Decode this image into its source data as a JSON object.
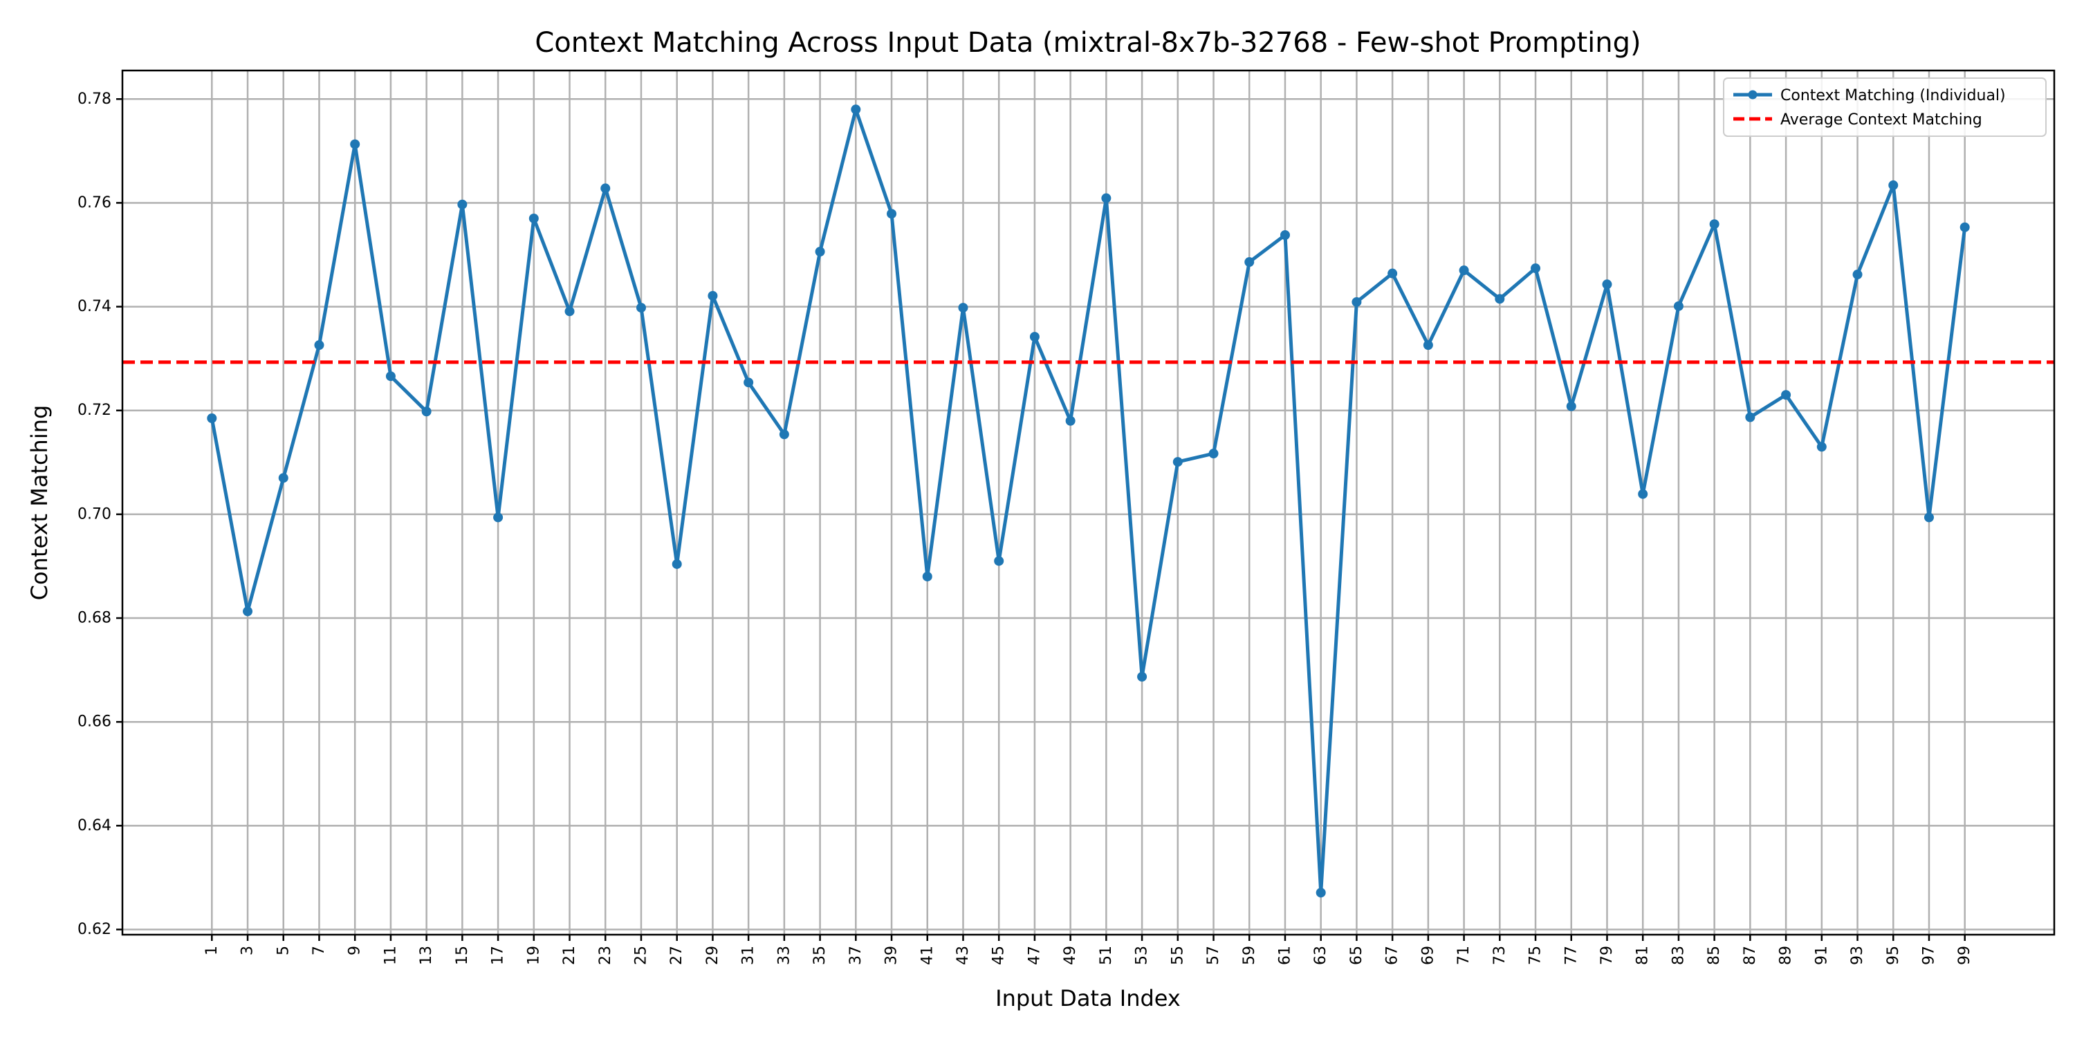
{
  "chart_data": {
    "type": "line",
    "title": "Context Matching Across Input Data (mixtral-8x7b-32768 - Few-shot Prompting)",
    "xlabel": "Input Data Index",
    "ylabel": "Context Matching",
    "xlim": [
      -4,
      104
    ],
    "ylim": [
      0.619,
      0.7855
    ],
    "x_ticks": [
      1,
      3,
      5,
      7,
      9,
      11,
      13,
      15,
      17,
      19,
      21,
      23,
      25,
      27,
      29,
      31,
      33,
      35,
      37,
      39,
      41,
      43,
      45,
      47,
      49,
      51,
      53,
      55,
      57,
      59,
      61,
      63,
      65,
      67,
      69,
      71,
      73,
      75,
      77,
      79,
      81,
      83,
      85,
      87,
      89,
      91,
      93,
      95,
      97,
      99
    ],
    "y_ticks": [
      0.62,
      0.64,
      0.66,
      0.68,
      0.7,
      0.72,
      0.74,
      0.76,
      0.78
    ],
    "y_tick_labels": [
      "0.62",
      "0.64",
      "0.66",
      "0.68",
      "0.70",
      "0.72",
      "0.74",
      "0.76",
      "0.78"
    ],
    "grid": true,
    "legend_position": "top-right",
    "series": [
      {
        "name": "Context Matching (Individual)",
        "color": "#1f77b4",
        "style": "line-with-markers",
        "x": [
          1,
          3,
          5,
          7,
          9,
          11,
          13,
          15,
          17,
          19,
          21,
          23,
          25,
          27,
          29,
          31,
          33,
          35,
          37,
          39,
          41,
          43,
          45,
          47,
          49,
          51,
          53,
          55,
          57,
          59,
          61,
          63,
          65,
          67,
          69,
          71,
          73,
          75,
          77,
          79,
          81,
          83,
          85,
          87,
          89,
          91,
          93,
          95,
          97,
          99
        ],
        "y": [
          0.7185,
          0.6813,
          0.707,
          0.7326,
          0.7713,
          0.7266,
          0.7198,
          0.7597,
          0.6994,
          0.757,
          0.7391,
          0.7628,
          0.7398,
          0.6904,
          0.7421,
          0.7254,
          0.7154,
          0.7506,
          0.778,
          0.7579,
          0.688,
          0.7398,
          0.691,
          0.7342,
          0.718,
          0.7609,
          0.6687,
          0.7101,
          0.7117,
          0.7486,
          0.7538,
          0.6271,
          0.7409,
          0.7464,
          0.7326,
          0.747,
          0.7415,
          0.7474,
          0.7208,
          0.7443,
          0.7039,
          0.7401,
          0.7559,
          0.7187,
          0.723,
          0.713,
          0.7462,
          0.7634,
          0.6994,
          0.7553
        ]
      },
      {
        "name": "Average Context Matching",
        "color": "#ff0000",
        "style": "dashed-horizontal",
        "value": 0.7293
      }
    ]
  }
}
